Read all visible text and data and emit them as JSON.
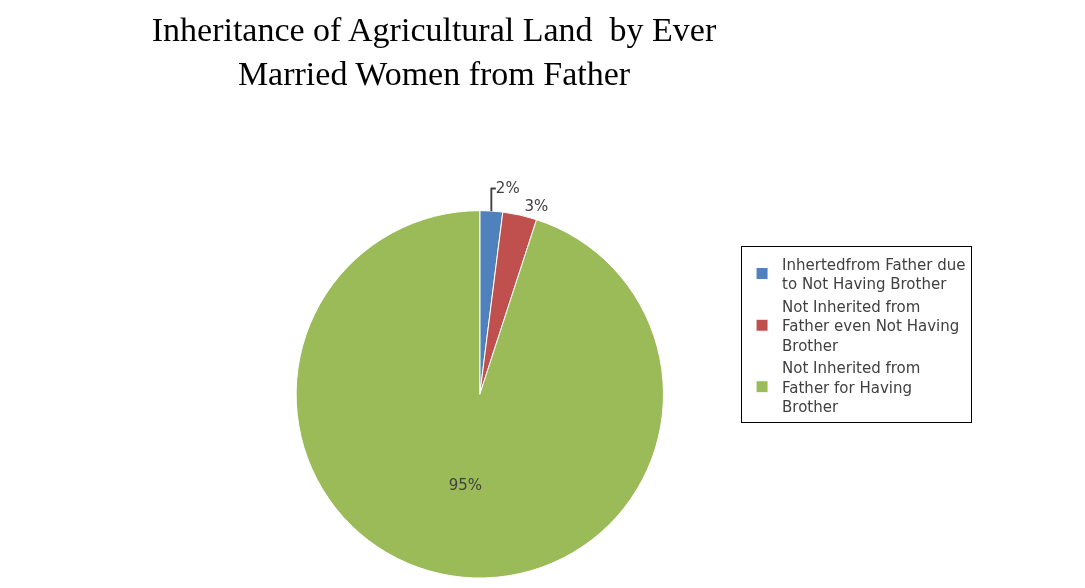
{
  "chart_data": {
    "type": "pie",
    "title": "Inheritance of Agricultural Land  by Ever Married Women from Father",
    "categories": [
      "Inhertedfrom Father due to Not Having Brother",
      "Not Inherited from Father even Not Having Brother",
      "Not Inherited from Father for Having Brother"
    ],
    "values": [
      2,
      3,
      95
    ],
    "value_labels": [
      "2%",
      "3%",
      "95%"
    ],
    "colors": [
      "#4f81bd",
      "#c0504d",
      "#9bbb59"
    ],
    "legend": "right"
  }
}
